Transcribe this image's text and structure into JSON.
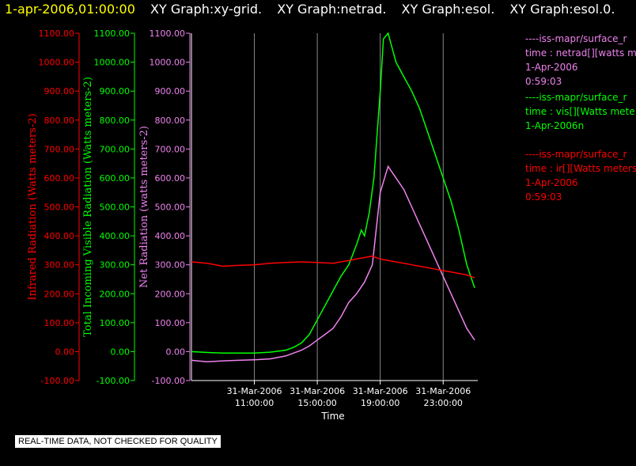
{
  "header": {
    "datetime": "1-apr-2006,01:00:00",
    "titles": [
      "XY Graph:xy-grid.",
      "XY Graph:netrad.",
      "XY Graph:esol.",
      "XY Graph:esol.0."
    ]
  },
  "colors": {
    "ir": "#ff0000",
    "vis": "#00ff00",
    "net": "#ee82ee",
    "axis": "#ffffff",
    "grid": "#888888"
  },
  "legend": [
    {
      "color": "#ee82ee",
      "lines": [
        "----iss-mapr/surface_r",
        "time : netrad[][watts m",
        "1-Apr-2006",
        "0:59:03"
      ]
    },
    {
      "color": "#00ff00",
      "lines": [
        "----iss-mapr/surface_r",
        "time : vis[][Watts mete",
        "1-Apr-2006n"
      ]
    },
    {
      "color": "#ff0000",
      "lines": [
        "----iss-mapr/surface_r",
        "time : ir[][Watts meters",
        "1-Apr-2006",
        "0:59:03"
      ]
    }
  ],
  "footer": "REAL-TIME DATA, NOT CHECKED FOR QUALITY",
  "chart_data": {
    "type": "line",
    "xlabel": "Time",
    "x_ticks": [
      {
        "date": "31-Mar-2006",
        "time": "11:00:00",
        "hour": 11
      },
      {
        "date": "31-Mar-2006",
        "time": "15:00:00",
        "hour": 15
      },
      {
        "date": "31-Mar-2006",
        "time": "19:00:00",
        "hour": 19
      },
      {
        "date": "31-Mar-2006",
        "time": "23:00:00",
        "hour": 23
      }
    ],
    "xlim_hours": [
      7,
      25.2
    ],
    "ylim": [
      -100,
      1100
    ],
    "y_ticks": [
      "1100.00",
      "1000.00",
      "900.00",
      "800.00",
      "700.00",
      "600.00",
      "500.00",
      "400.00",
      "300.00",
      "200.00",
      "100.00",
      "0.00",
      "-100.00"
    ],
    "y_axes": [
      {
        "label": "Infrared Radiation (Watts meters-2)",
        "color": "#ff0000"
      },
      {
        "label": "Total Incoming Visible Radiation (Watts meters-2)",
        "color": "#00ff00"
      },
      {
        "label": "Net Radiation (watts meters-2)",
        "color": "#ee82ee"
      }
    ],
    "series": [
      {
        "name": "ir",
        "color": "#ff0000",
        "x": [
          7,
          8,
          9,
          10,
          11,
          12,
          13,
          14,
          15,
          16,
          17,
          18,
          18.5,
          19,
          19.5,
          20,
          20.5,
          21,
          21.5,
          22,
          22.5,
          23,
          23.5,
          24,
          24.5,
          25
        ],
        "y": [
          310,
          305,
          295,
          298,
          300,
          305,
          308,
          310,
          308,
          305,
          315,
          325,
          330,
          320,
          315,
          310,
          305,
          300,
          295,
          290,
          285,
          280,
          275,
          270,
          265,
          255
        ]
      },
      {
        "name": "vis",
        "color": "#00ff00",
        "x": [
          7,
          8,
          9,
          10,
          11,
          12,
          13,
          13.5,
          14,
          14.5,
          15,
          15.5,
          16,
          16.5,
          17,
          17.5,
          17.8,
          18,
          18.3,
          18.6,
          19,
          19.2,
          19.5,
          20,
          20.5,
          21,
          21.5,
          22,
          22.5,
          23,
          23.5,
          24,
          24.5,
          25
        ],
        "y": [
          0,
          -3,
          -5,
          -5,
          -5,
          -2,
          5,
          15,
          30,
          60,
          110,
          160,
          210,
          260,
          300,
          370,
          420,
          400,
          480,
          600,
          900,
          1080,
          1100,
          1000,
          950,
          900,
          840,
          760,
          680,
          600,
          520,
          420,
          300,
          220
        ]
      },
      {
        "name": "net",
        "color": "#ee82ee",
        "x": [
          7,
          8,
          9,
          10,
          11,
          12,
          13,
          13.5,
          14,
          14.5,
          15,
          15.5,
          16,
          16.5,
          17,
          17.5,
          18,
          18.5,
          19,
          19.5,
          20,
          20.5,
          21,
          21.5,
          22,
          22.5,
          23,
          23.5,
          24,
          24.5,
          25
        ],
        "y": [
          -30,
          -35,
          -32,
          -30,
          -28,
          -25,
          -15,
          -5,
          5,
          20,
          40,
          60,
          80,
          120,
          170,
          200,
          240,
          300,
          550,
          640,
          600,
          560,
          500,
          440,
          380,
          320,
          260,
          200,
          140,
          80,
          40
        ]
      }
    ]
  }
}
